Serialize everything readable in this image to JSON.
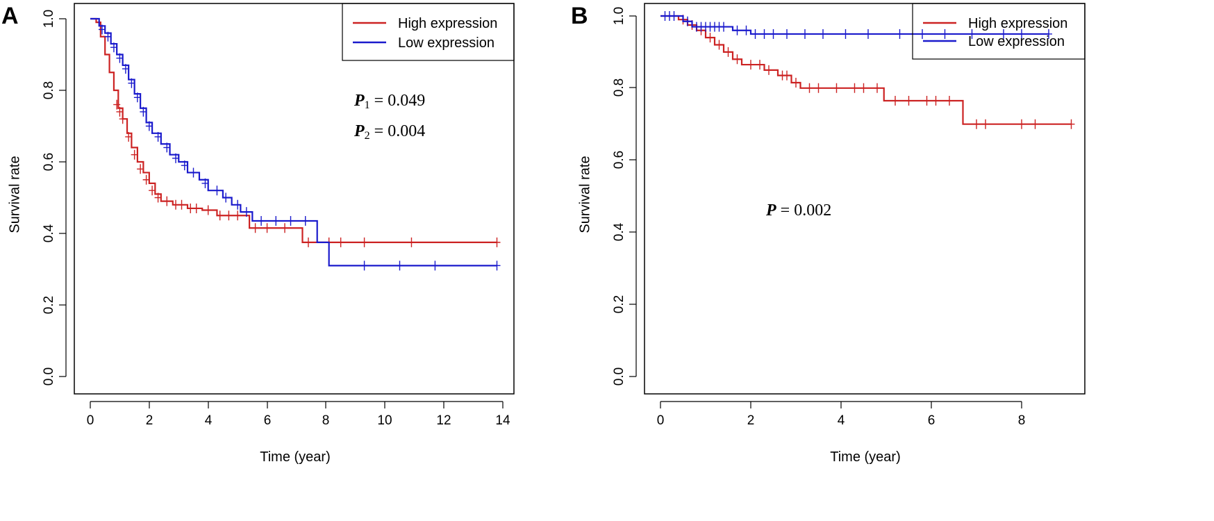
{
  "chart_data": [
    {
      "type": "line",
      "panel_label": "A",
      "xlabel": "Time (year)",
      "ylabel": "Survival rate",
      "xlim": [
        0,
        14
      ],
      "ylim": [
        0,
        1
      ],
      "xticks": [
        "0",
        "2",
        "4",
        "6",
        "8",
        "10",
        "12",
        "14"
      ],
      "yticks": [
        "0.0",
        "0.2",
        "0.4",
        "0.6",
        "0.8",
        "1.0"
      ],
      "legend": {
        "placement": "top-right",
        "entries": [
          "High expression",
          "Low expression"
        ]
      },
      "annotations": [
        {
          "label": "P",
          "sub": "1",
          "text": " = 0.049"
        },
        {
          "label": "P",
          "sub": "2",
          "text": " = 0.004"
        }
      ],
      "series": [
        {
          "name": "High expression",
          "color": "#cc2222",
          "steps": [
            [
              0,
              1.0
            ],
            [
              0.2,
              0.99
            ],
            [
              0.35,
              0.95
            ],
            [
              0.5,
              0.9
            ],
            [
              0.65,
              0.85
            ],
            [
              0.8,
              0.8
            ],
            [
              0.95,
              0.75
            ],
            [
              1.1,
              0.72
            ],
            [
              1.25,
              0.68
            ],
            [
              1.4,
              0.64
            ],
            [
              1.6,
              0.6
            ],
            [
              1.8,
              0.57
            ],
            [
              2.0,
              0.54
            ],
            [
              2.2,
              0.51
            ],
            [
              2.4,
              0.49
            ],
            [
              2.8,
              0.48
            ],
            [
              3.3,
              0.47
            ],
            [
              3.8,
              0.465
            ],
            [
              4.3,
              0.45
            ],
            [
              5.4,
              0.415
            ],
            [
              7.2,
              0.375
            ],
            [
              13.8,
              0.375
            ]
          ],
          "censored": [
            [
              0.9,
              0.76
            ],
            [
              1.0,
              0.74
            ],
            [
              1.1,
              0.72
            ],
            [
              1.3,
              0.67
            ],
            [
              1.5,
              0.62
            ],
            [
              1.7,
              0.58
            ],
            [
              1.9,
              0.55
            ],
            [
              2.1,
              0.52
            ],
            [
              2.3,
              0.5
            ],
            [
              2.6,
              0.49
            ],
            [
              2.9,
              0.48
            ],
            [
              3.1,
              0.48
            ],
            [
              3.4,
              0.47
            ],
            [
              3.6,
              0.47
            ],
            [
              4.0,
              0.465
            ],
            [
              4.4,
              0.45
            ],
            [
              4.7,
              0.45
            ],
            [
              5.0,
              0.45
            ],
            [
              5.6,
              0.415
            ],
            [
              6.0,
              0.415
            ],
            [
              6.6,
              0.415
            ],
            [
              7.4,
              0.375
            ],
            [
              8.1,
              0.375
            ],
            [
              8.5,
              0.375
            ],
            [
              9.3,
              0.375
            ],
            [
              10.9,
              0.375
            ],
            [
              13.8,
              0.375
            ]
          ]
        },
        {
          "name": "Low expression",
          "color": "#1a1acc",
          "steps": [
            [
              0,
              1.0
            ],
            [
              0.3,
              0.98
            ],
            [
              0.5,
              0.96
            ],
            [
              0.7,
              0.93
            ],
            [
              0.9,
              0.9
            ],
            [
              1.1,
              0.87
            ],
            [
              1.3,
              0.83
            ],
            [
              1.5,
              0.79
            ],
            [
              1.7,
              0.75
            ],
            [
              1.9,
              0.71
            ],
            [
              2.1,
              0.68
            ],
            [
              2.4,
              0.65
            ],
            [
              2.7,
              0.62
            ],
            [
              3.0,
              0.6
            ],
            [
              3.3,
              0.57
            ],
            [
              3.7,
              0.55
            ],
            [
              4.0,
              0.52
            ],
            [
              4.5,
              0.5
            ],
            [
              4.8,
              0.48
            ],
            [
              5.1,
              0.46
            ],
            [
              5.5,
              0.435
            ],
            [
              7.7,
              0.375
            ],
            [
              8.1,
              0.31
            ],
            [
              13.8,
              0.31
            ]
          ],
          "censored": [
            [
              0.4,
              0.97
            ],
            [
              0.6,
              0.95
            ],
            [
              0.8,
              0.92
            ],
            [
              1.0,
              0.89
            ],
            [
              1.2,
              0.86
            ],
            [
              1.4,
              0.82
            ],
            [
              1.6,
              0.78
            ],
            [
              1.8,
              0.74
            ],
            [
              2.0,
              0.7
            ],
            [
              2.3,
              0.67
            ],
            [
              2.6,
              0.64
            ],
            [
              2.9,
              0.61
            ],
            [
              3.2,
              0.59
            ],
            [
              3.5,
              0.57
            ],
            [
              3.9,
              0.54
            ],
            [
              4.3,
              0.52
            ],
            [
              4.6,
              0.5
            ],
            [
              5.0,
              0.48
            ],
            [
              5.3,
              0.46
            ],
            [
              5.8,
              0.435
            ],
            [
              6.3,
              0.435
            ],
            [
              6.8,
              0.435
            ],
            [
              7.3,
              0.435
            ],
            [
              9.3,
              0.31
            ],
            [
              10.5,
              0.31
            ],
            [
              11.7,
              0.31
            ],
            [
              13.8,
              0.31
            ]
          ]
        }
      ]
    },
    {
      "type": "line",
      "panel_label": "B",
      "xlabel": "Time (year)",
      "ylabel": "Survival rate",
      "xlim": [
        0,
        9
      ],
      "ylim": [
        0,
        1
      ],
      "xticks": [
        "0",
        "2",
        "4",
        "6",
        "8"
      ],
      "yticks": [
        "0.0",
        "0.2",
        "0.4",
        "0.6",
        "0.8",
        "1.0"
      ],
      "legend": {
        "placement": "top-right",
        "entries": [
          "High expression",
          "Low expression"
        ]
      },
      "annotations": [
        {
          "label": "P",
          "sub": "",
          "text": " = 0.002"
        }
      ],
      "series": [
        {
          "name": "High expression",
          "color": "#cc2222",
          "steps": [
            [
              0,
              1.0
            ],
            [
              0.4,
              0.99
            ],
            [
              0.6,
              0.975
            ],
            [
              0.8,
              0.96
            ],
            [
              1.0,
              0.94
            ],
            [
              1.2,
              0.92
            ],
            [
              1.4,
              0.9
            ],
            [
              1.6,
              0.88
            ],
            [
              1.8,
              0.865
            ],
            [
              2.3,
              0.85
            ],
            [
              2.6,
              0.835
            ],
            [
              2.9,
              0.815
            ],
            [
              3.1,
              0.8
            ],
            [
              4.95,
              0.765
            ],
            [
              6.7,
              0.7
            ],
            [
              9.1,
              0.7
            ]
          ],
          "censored": [
            [
              0.5,
              0.99
            ],
            [
              0.7,
              0.975
            ],
            [
              0.9,
              0.96
            ],
            [
              1.1,
              0.94
            ],
            [
              1.3,
              0.92
            ],
            [
              1.5,
              0.9
            ],
            [
              1.7,
              0.88
            ],
            [
              2.0,
              0.865
            ],
            [
              2.2,
              0.865
            ],
            [
              2.4,
              0.85
            ],
            [
              2.7,
              0.835
            ],
            [
              2.8,
              0.835
            ],
            [
              3.0,
              0.815
            ],
            [
              3.3,
              0.8
            ],
            [
              3.5,
              0.8
            ],
            [
              3.9,
              0.8
            ],
            [
              4.3,
              0.8
            ],
            [
              4.5,
              0.8
            ],
            [
              4.8,
              0.8
            ],
            [
              5.2,
              0.765
            ],
            [
              5.5,
              0.765
            ],
            [
              5.9,
              0.765
            ],
            [
              6.1,
              0.765
            ],
            [
              6.4,
              0.765
            ],
            [
              7.0,
              0.7
            ],
            [
              7.2,
              0.7
            ],
            [
              8.0,
              0.7
            ],
            [
              8.3,
              0.7
            ],
            [
              9.1,
              0.7
            ]
          ]
        },
        {
          "name": "Low expression",
          "color": "#1a1acc",
          "steps": [
            [
              0,
              1.0
            ],
            [
              0.5,
              0.985
            ],
            [
              0.7,
              0.97
            ],
            [
              1.6,
              0.96
            ],
            [
              2.0,
              0.95
            ],
            [
              8.6,
              0.95
            ]
          ],
          "censored": [
            [
              0.1,
              1.0
            ],
            [
              0.2,
              1.0
            ],
            [
              0.3,
              1.0
            ],
            [
              0.6,
              0.985
            ],
            [
              0.8,
              0.97
            ],
            [
              0.9,
              0.97
            ],
            [
              1.0,
              0.97
            ],
            [
              1.1,
              0.97
            ],
            [
              1.2,
              0.97
            ],
            [
              1.3,
              0.97
            ],
            [
              1.4,
              0.97
            ],
            [
              1.7,
              0.96
            ],
            [
              1.9,
              0.96
            ],
            [
              2.1,
              0.95
            ],
            [
              2.3,
              0.95
            ],
            [
              2.5,
              0.95
            ],
            [
              2.8,
              0.95
            ],
            [
              3.2,
              0.95
            ],
            [
              3.6,
              0.95
            ],
            [
              4.1,
              0.95
            ],
            [
              4.6,
              0.95
            ],
            [
              5.3,
              0.95
            ],
            [
              5.8,
              0.95
            ],
            [
              6.3,
              0.95
            ],
            [
              6.9,
              0.95
            ],
            [
              7.6,
              0.95
            ],
            [
              8.0,
              0.95
            ],
            [
              8.6,
              0.95
            ]
          ]
        }
      ]
    }
  ]
}
